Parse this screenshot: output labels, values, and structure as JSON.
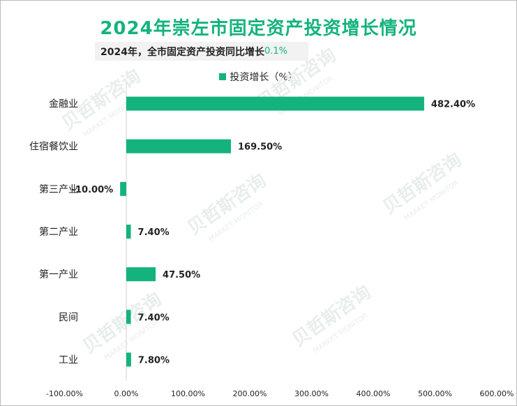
{
  "title": "2024年崇左市固定资产投资增长情况",
  "subtitle": {
    "label": "2024年，全市固定资产投资同比增长",
    "value": "0.1%"
  },
  "watermark": {
    "brand": "贝哲斯咨询",
    "brand_en": "MARKET MONITOR"
  },
  "colors": {
    "bar": "#14b37d",
    "title": "#14b37d"
  },
  "chart_data": {
    "type": "bar",
    "orientation": "horizontal",
    "title": "2024年崇左市固定资产投资增长情况",
    "categories": [
      "金融业",
      "住宿餐饮业",
      "第三产业",
      "第二产业",
      "第一产业",
      "民间",
      "工业"
    ],
    "series": [
      {
        "name": "投资增长（%）",
        "values": [
          482.4,
          169.5,
          -10.0,
          7.4,
          47.5,
          7.4,
          7.8
        ],
        "labels": [
          "482.40%",
          "169.50%",
          "-10.00%",
          "7.40%",
          "47.50%",
          "7.40%",
          "7.80%"
        ]
      }
    ],
    "xlim": [
      -100,
      600
    ],
    "xticks": [
      -100,
      0,
      100,
      200,
      300,
      400,
      500,
      600
    ],
    "xtick_labels": [
      "-100.00%",
      "0.00%",
      "100.00%",
      "200.00%",
      "300.00%",
      "400.00%",
      "500.00%",
      "600.00%"
    ],
    "legend_position": "top-center",
    "grid": false
  }
}
